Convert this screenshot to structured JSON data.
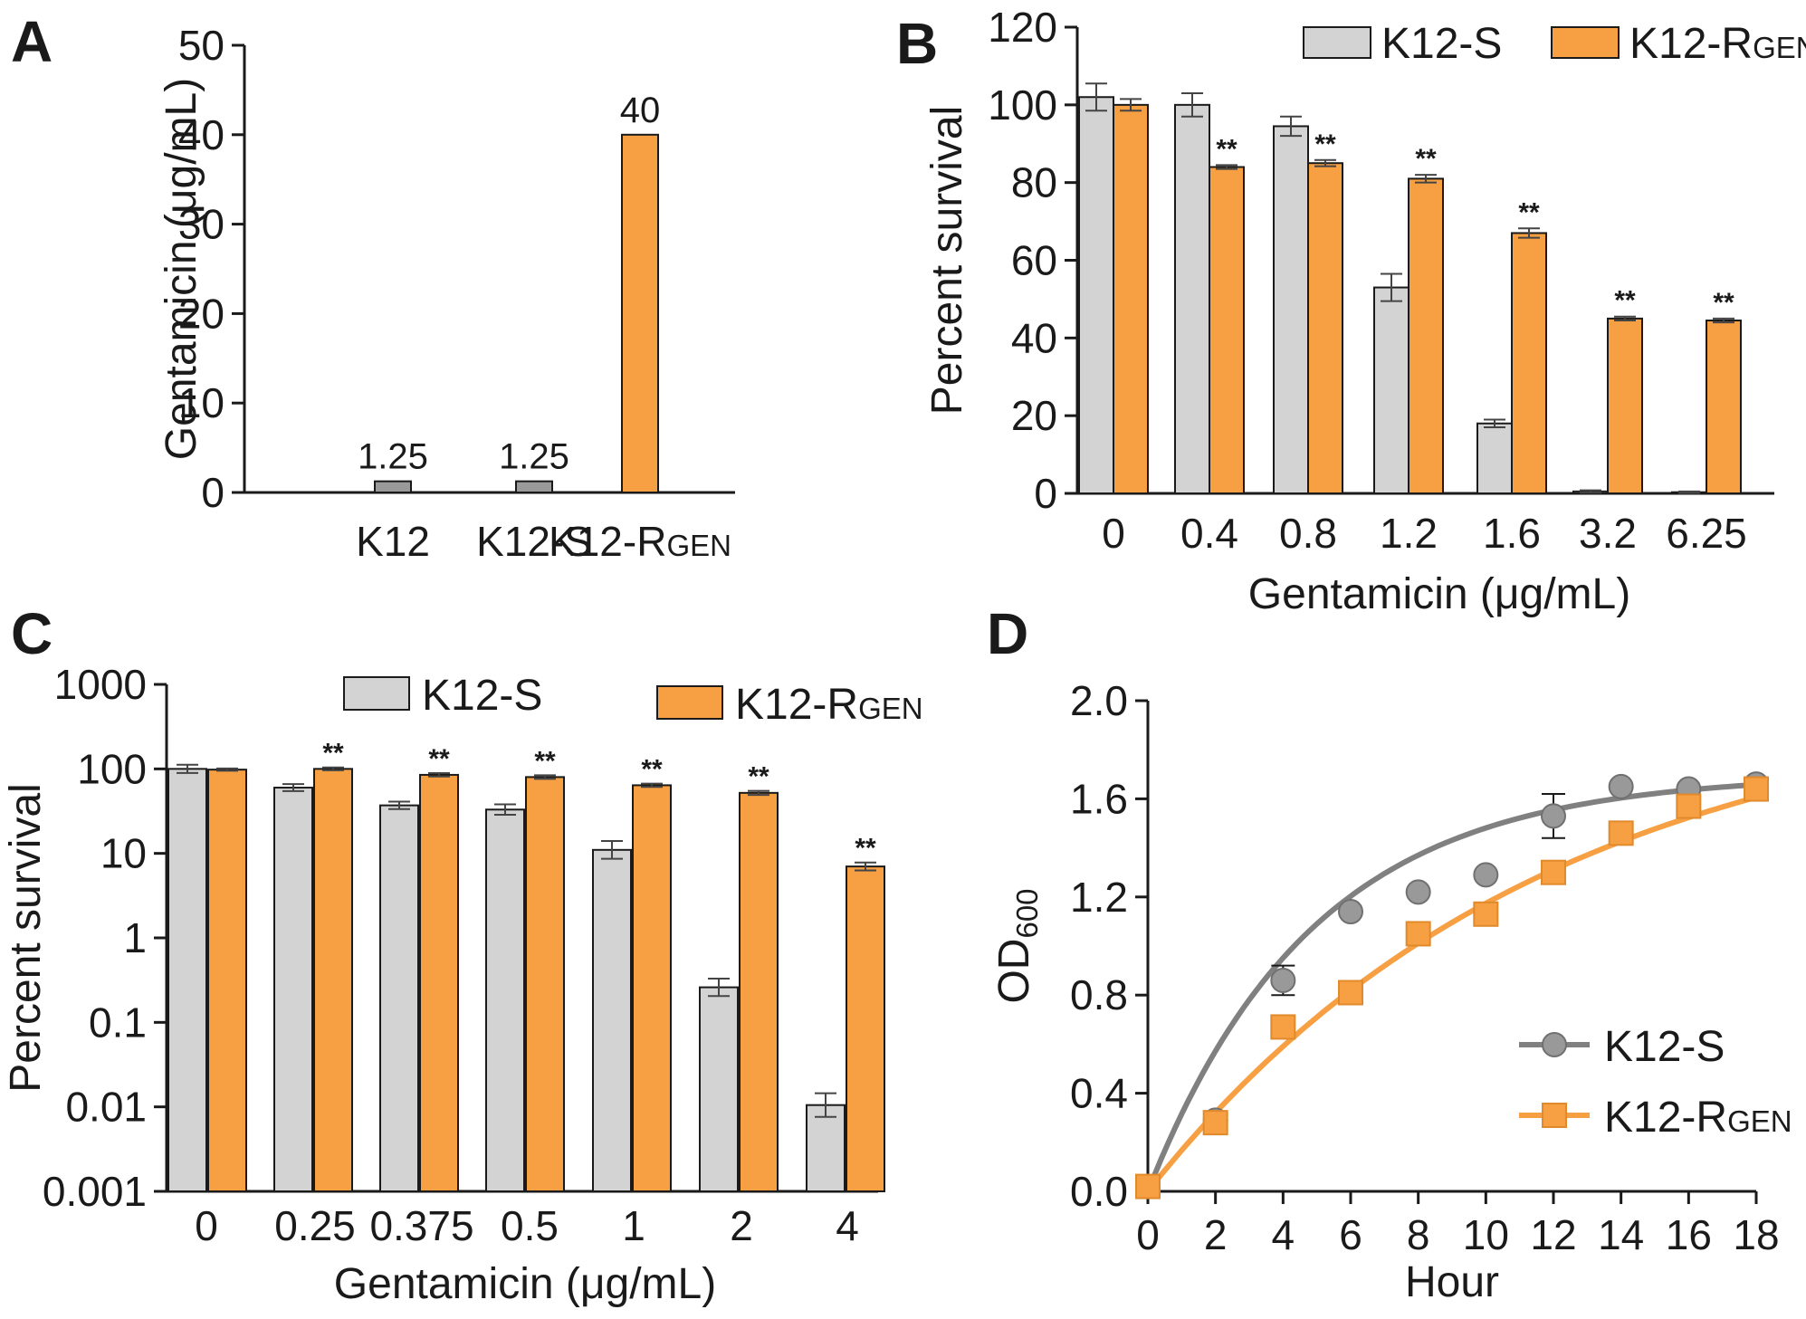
{
  "colors": {
    "grey": "#d3d3d3",
    "grey_dark": "#9a9a9a",
    "grey_line": "#808080",
    "orange": "#f7a043",
    "orange_line": "#f7a043",
    "outline": "#1a1a1a"
  },
  "chart_data": [
    {
      "id": "A",
      "panel_label": "A",
      "type": "bar",
      "title": "",
      "xlabel": "",
      "ylabel": "Gentamicin (μg/mL)",
      "ylim": [
        0,
        50
      ],
      "yticks": [
        "0",
        "10",
        "20",
        "30",
        "40",
        "50"
      ],
      "categories": [
        {
          "main": "K12",
          "sub": ""
        },
        {
          "main": "K12-S",
          "sub": ""
        },
        {
          "main": "K12-R",
          "sub": "GEN"
        }
      ],
      "values": [
        1.25,
        1.25,
        40
      ],
      "value_labels": [
        "1.25",
        "1.25",
        "40"
      ],
      "bar_colors": [
        "grey_dark",
        "grey_dark",
        "orange"
      ]
    },
    {
      "id": "B",
      "panel_label": "B",
      "type": "bar",
      "title": "",
      "xlabel": "Gentamicin (μg/mL)",
      "ylabel": "Percent survival",
      "ylim": [
        0,
        120
      ],
      "yticks": [
        "0",
        "20",
        "40",
        "60",
        "80",
        "100",
        "120"
      ],
      "categories": [
        "0",
        "0.4",
        "0.8",
        "1.2",
        "1.6",
        "3.2",
        "6.25"
      ],
      "series": [
        {
          "name": "K12-S",
          "name_sub": "",
          "color": "grey",
          "values": [
            102,
            100,
            94.5,
            53,
            18,
            0.5,
            0.3
          ],
          "errors": [
            3.5,
            3,
            2.5,
            3.5,
            1,
            0.3,
            0.2
          ]
        },
        {
          "name": "K12-R",
          "name_sub": "GEN",
          "color": "orange",
          "values": [
            100,
            84,
            85,
            81,
            67,
            45,
            44.5
          ],
          "errors": [
            1.5,
            0.5,
            0.8,
            1,
            1.2,
            0.5,
            0.5
          ]
        }
      ],
      "significance": [
        "",
        "**",
        "**",
        "**",
        "**",
        "**",
        "**"
      ],
      "legend": "top"
    },
    {
      "id": "C",
      "panel_label": "C",
      "type": "bar",
      "scale": "log",
      "title": "",
      "xlabel": "Gentamicin (μg/mL)",
      "ylabel": "Percent survival",
      "ylim": [
        0.001,
        1000
      ],
      "yticks": [
        "0.001",
        "0.01",
        "0.1",
        "1",
        "10",
        "100",
        "1000"
      ],
      "categories": [
        "0",
        "0.25",
        "0.375",
        "0.5",
        "1",
        "2",
        "4"
      ],
      "series": [
        {
          "name": "K12-S",
          "name_sub": "",
          "color": "grey",
          "values": [
            100,
            60,
            37,
            33,
            11,
            0.26,
            0.0105
          ],
          "errors_hi": [
            112,
            66,
            41,
            38,
            14,
            0.33,
            0.0145
          ]
        },
        {
          "name": "K12-R",
          "name_sub": "GEN",
          "color": "orange",
          "values": [
            98,
            100,
            85,
            80,
            64,
            52,
            7
          ],
          "errors_hi": [
            101,
            104,
            89,
            84,
            67,
            55,
            7.8
          ]
        }
      ],
      "significance": [
        "",
        "**",
        "**",
        "**",
        "**",
        "**",
        "**"
      ],
      "legend": "top"
    },
    {
      "id": "D",
      "panel_label": "D",
      "type": "line",
      "title": "",
      "xlabel": "Hour",
      "ylabel": "OD",
      "ylabel_sub": "600",
      "xlim": [
        0,
        18
      ],
      "ylim": [
        0,
        2.0
      ],
      "xticks": [
        "0",
        "2",
        "4",
        "6",
        "8",
        "10",
        "12",
        "14",
        "16",
        "18"
      ],
      "yticks": [
        "0.0",
        "0.4",
        "0.8",
        "1.2",
        "1.6",
        "2.0"
      ],
      "series": [
        {
          "name": "K12-S",
          "name_sub": "",
          "color": "grey_line",
          "marker": "circle",
          "x": [
            0,
            2,
            4,
            6,
            8,
            10,
            12,
            14,
            16,
            18
          ],
          "y": [
            0.02,
            0.29,
            0.86,
            1.14,
            1.22,
            1.29,
            1.53,
            1.65,
            1.64,
            1.66
          ],
          "errors": [
            0,
            0,
            0.06,
            0,
            0,
            0,
            0.09,
            0,
            0,
            0
          ],
          "fit": {
            "a": 1.7,
            "k": 0.205
          }
        },
        {
          "name": "K12-R",
          "name_sub": "GEN",
          "color": "orange_line",
          "marker": "square",
          "x": [
            0,
            2,
            4,
            6,
            8,
            10,
            12,
            14,
            16,
            18
          ],
          "y": [
            0.02,
            0.28,
            0.67,
            0.81,
            1.05,
            1.13,
            1.3,
            1.46,
            1.57,
            1.64
          ],
          "errors": [
            0,
            0,
            0,
            0,
            0,
            0,
            0,
            0,
            0,
            0
          ],
          "fit": {
            "a": 2.05,
            "k": 0.085
          }
        }
      ],
      "legend": "bottom-right"
    }
  ]
}
